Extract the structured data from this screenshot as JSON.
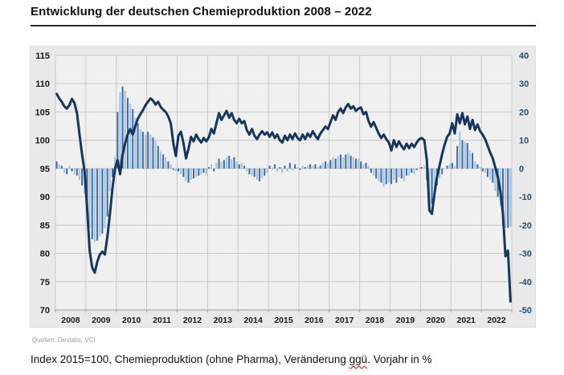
{
  "page": {
    "title": "Entwicklung der deutschen Chemieproduktion 2008 – 2022",
    "source": "Quellen: Destatis, VCI",
    "caption": {
      "pre": "Index 2015=100, Chemieproduktion (ohne Pharma), Veränderung ",
      "spellcheck_word": "ggü",
      "post": ". Vorjahr in %"
    }
  },
  "colors": {
    "line": "#16365c",
    "bar_dark": "#3a6ba5",
    "bar_light": "#9fc1e1",
    "grid": "#c8c8c8",
    "plot_bg": "#f0f0f0",
    "panel_bg": "#e9e9e9",
    "axis_line": "#9c9c9c",
    "right_axis_text": "#1f4e79",
    "spellcheck": "#cc0000"
  },
  "chart_data": {
    "type": "line+bar",
    "title": "Entwicklung der deutschen Chemieproduktion 2008 – 2022",
    "x_years": [
      2008,
      2009,
      2010,
      2011,
      2012,
      2013,
      2014,
      2015,
      2016,
      2017,
      2018,
      2019,
      2020,
      2021,
      2022
    ],
    "left_axis": {
      "min": 70,
      "max": 115,
      "step": 5
    },
    "right_axis": {
      "min": -50,
      "max": 40,
      "step": 10
    },
    "grid": true,
    "legend": "none",
    "series": [
      {
        "name": "Chemieproduktion Index (2015=100)",
        "type": "line",
        "axis": "left",
        "monthly_values": [
          {
            "year": 2008,
            "values": [
              108.2,
              107.4,
              106.8,
              106.0,
              105.6,
              106.2,
              107.3,
              106.6,
              104.8,
              101.0,
              97.5,
              94.5
            ]
          },
          {
            "year": 2009,
            "values": [
              88.0,
              80.5,
              77.5,
              76.6,
              78.5,
              79.8,
              80.3,
              79.8,
              83.0,
              87.0,
              91.5,
              95.0
            ]
          },
          {
            "year": 2010,
            "values": [
              96.5,
              94.0,
              97.5,
              99.5,
              101.0,
              102.0,
              101.0,
              102.5,
              103.8,
              104.6,
              105.3,
              106.2
            ]
          },
          {
            "year": 2011,
            "values": [
              106.8,
              107.4,
              107.0,
              106.3,
              106.8,
              105.9,
              105.4,
              105.0,
              104.2,
              103.0,
              99.5,
              97.2
            ]
          },
          {
            "year": 2012,
            "values": [
              100.8,
              101.5,
              99.5,
              96.8,
              98.5,
              100.6,
              99.8,
              101.0,
              100.2,
              99.6,
              100.4,
              99.8
            ]
          },
          {
            "year": 2013,
            "values": [
              100.5,
              102.0,
              101.2,
              103.0,
              104.8,
              103.6,
              104.4,
              105.2,
              104.0,
              104.8,
              103.6,
              103.0
            ]
          },
          {
            "year": 2014,
            "values": [
              103.8,
              103.0,
              103.4,
              101.8,
              101.0,
              102.0,
              100.8,
              100.2,
              101.0,
              101.6,
              101.0,
              101.4
            ]
          },
          {
            "year": 2015,
            "values": [
              100.6,
              101.4,
              100.4,
              101.0,
              100.0,
              99.6,
              100.8,
              100.0,
              101.0,
              100.2,
              101.2,
              100.4
            ]
          },
          {
            "year": 2016,
            "values": [
              100.0,
              101.0,
              100.2,
              101.2,
              100.6,
              101.6,
              100.8,
              100.2,
              101.2,
              101.8,
              102.4,
              102.0
            ]
          },
          {
            "year": 2017,
            "values": [
              103.2,
              104.4,
              103.6,
              105.0,
              105.6,
              104.8,
              105.8,
              106.4,
              105.6,
              106.0,
              105.2,
              105.6
            ]
          },
          {
            "year": 2018,
            "values": [
              105.8,
              104.6,
              105.0,
              103.4,
              102.4,
              103.2,
              102.2,
              101.2,
              100.4,
              101.0,
              100.2,
              99.6
            ]
          },
          {
            "year": 2019,
            "values": [
              98.2,
              100.0,
              98.8,
              99.8,
              99.0,
              98.4,
              99.4,
              98.6,
              99.4,
              98.8,
              99.6,
              100.2
            ]
          },
          {
            "year": 2020,
            "values": [
              100.4,
              100.0,
              96.5,
              87.6,
              87.0,
              90.5,
              93.5,
              95.5,
              97.5,
              99.2,
              100.6,
              101.2
            ]
          },
          {
            "year": 2021,
            "values": [
              103.0,
              101.2,
              104.6,
              103.0,
              104.8,
              102.8,
              104.2,
              102.0,
              103.6,
              101.8,
              102.8,
              101.6
            ]
          },
          {
            "year": 2022,
            "values": [
              101.0,
              100.2,
              99.0,
              97.8,
              96.8,
              95.2,
              93.5,
              91.0,
              87.0,
              79.5,
              80.5,
              71.5
            ]
          }
        ]
      },
      {
        "name": "Veränderung ggü. Vorjahr in %",
        "type": "bar",
        "axis": "right",
        "monthly_values": [
          {
            "year": 2008,
            "values": [
              2.5,
              1.5,
              1.0,
              -1.5,
              -2.0,
              1.0,
              -1.0,
              -2.0,
              -2.5,
              -4.0,
              -6.0,
              -9.0
            ]
          },
          {
            "year": 2009,
            "values": [
              -15,
              -21,
              -25,
              -26,
              -25.5,
              -24,
              -23,
              -21,
              -17,
              -8,
              -3,
              4
            ]
          },
          {
            "year": 2010,
            "values": [
              20,
              27,
              29,
              27.5,
              25,
              23,
              21,
              18,
              16,
              14,
              13,
              12
            ]
          },
          {
            "year": 2011,
            "values": [
              13,
              12,
              11,
              10,
              8,
              6,
              5,
              4,
              2.5,
              1.5,
              -0.5,
              -1
            ]
          },
          {
            "year": 2012,
            "values": [
              -1,
              -2,
              -3,
              -4.5,
              -5,
              -4,
              -3.5,
              -3,
              -2.5,
              -2,
              -1.5,
              -2
            ]
          },
          {
            "year": 2013,
            "values": [
              0.5,
              1.5,
              -1,
              2,
              3.5,
              2.5,
              3,
              4,
              4.5,
              3.5,
              4,
              2.5
            ]
          },
          {
            "year": 2014,
            "values": [
              1.5,
              2,
              1,
              -1,
              -2,
              -2.5,
              -3,
              -4,
              -4.5,
              -3.5,
              -2.5,
              -1.5
            ]
          },
          {
            "year": 2015,
            "values": [
              1,
              -0.5,
              1.5,
              -1,
              0.5,
              -1.5,
              1,
              -1,
              2,
              -0.5,
              1.5,
              0.5
            ]
          },
          {
            "year": 2016,
            "values": [
              -0.5,
              1,
              0.5,
              1,
              1.5,
              1,
              1.5,
              0.5,
              1,
              2,
              2.5,
              2
            ]
          },
          {
            "year": 2017,
            "values": [
              3,
              4,
              3.5,
              4.5,
              5,
              4,
              5,
              5.5,
              4.5,
              4,
              3.5,
              3.5
            ]
          },
          {
            "year": 2018,
            "values": [
              2.5,
              1.5,
              2,
              1,
              -1.5,
              -2.5,
              -3.5,
              -4.5,
              -5,
              -6.5,
              -5.5,
              -5
            ]
          },
          {
            "year": 2019,
            "values": [
              -5.5,
              -4,
              -5,
              -3,
              -3.5,
              -4.5,
              -2.5,
              -2.5,
              -1.5,
              -2,
              -0.5,
              0.5
            ]
          },
          {
            "year": 2020,
            "values": [
              0.5,
              1,
              -4,
              -13,
              -12.5,
              -9,
              -6,
              -3.5,
              -2,
              0,
              1,
              1.5
            ]
          },
          {
            "year": 2021,
            "values": [
              2,
              1,
              8,
              13,
              10,
              9.5,
              9,
              6.5,
              5.5,
              2.5,
              1.5,
              0.5
            ]
          },
          {
            "year": 2022,
            "values": [
              -1,
              -1.5,
              -3,
              -4,
              -5,
              -8,
              -10,
              -13,
              -20,
              -21,
              -21,
              -20.5
            ]
          }
        ]
      }
    ]
  }
}
